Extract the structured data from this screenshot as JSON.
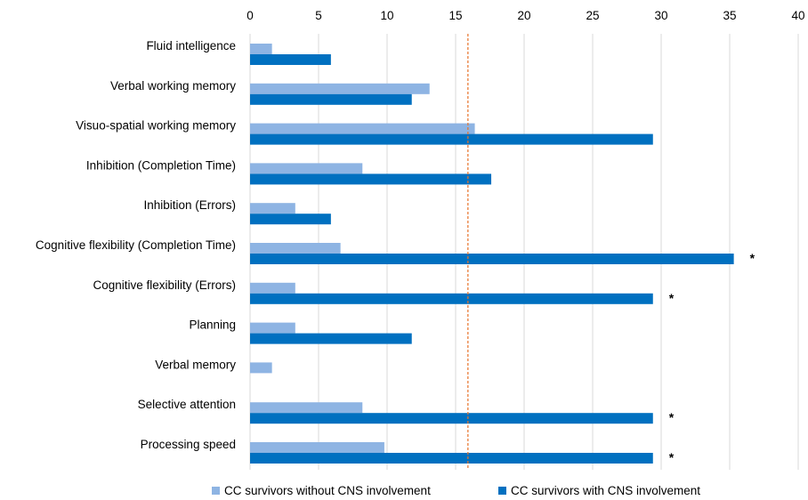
{
  "chart_data": {
    "type": "bar",
    "orientation": "horizontal",
    "categories": [
      "Fluid intelligence",
      "Verbal working memory",
      "Visuo-spatial working memory",
      "Inhibition (Completion Time)",
      "Inhibition (Errors)",
      "Cognitive flexibility (Completion Time)",
      "Cognitive flexibility (Errors)",
      "Planning",
      "Verbal memory",
      "Selective attention",
      "Processing speed"
    ],
    "series": [
      {
        "name": "CC survivors without CNS involvement",
        "color": "#8EB4E3",
        "values": [
          1.6,
          13.1,
          16.4,
          8.2,
          3.3,
          6.6,
          3.3,
          3.3,
          1.6,
          8.2,
          9.8
        ]
      },
      {
        "name": "CC survivors with CNS involvement",
        "color": "#0070C0",
        "values": [
          5.9,
          11.8,
          29.4,
          17.6,
          5.9,
          35.3,
          29.4,
          11.8,
          0,
          29.4,
          29.4
        ]
      }
    ],
    "significance": [
      "",
      "",
      "",
      "",
      "",
      "*",
      "*",
      "",
      "",
      "*",
      "*"
    ],
    "xlim": [
      0,
      40
    ],
    "xticks": [
      0,
      5,
      10,
      15,
      20,
      25,
      30,
      35,
      40
    ],
    "reference_line": {
      "value": 15.9,
      "color": "#E8732A",
      "style": "dashed"
    },
    "grid": true,
    "legend_position": "bottom"
  }
}
